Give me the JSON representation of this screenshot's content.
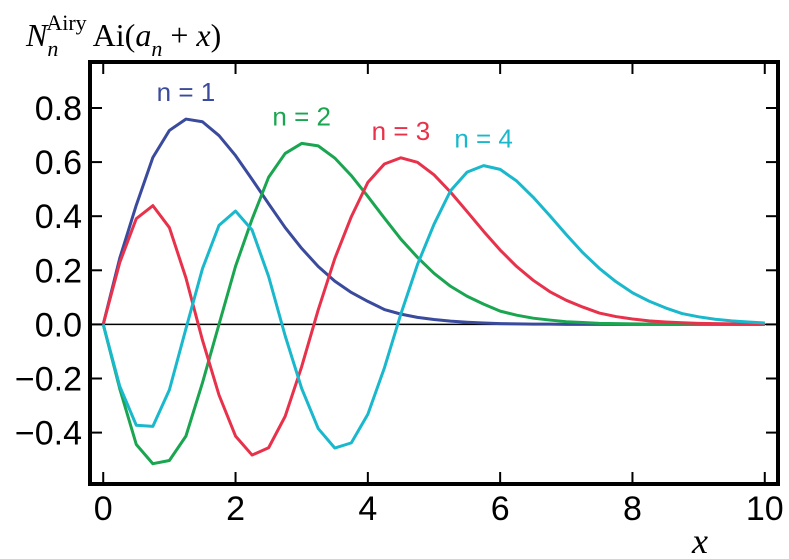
{
  "chart_data": {
    "type": "line",
    "ylabel": [
      "N",
      "n",
      "Airy",
      "Ai(",
      "a",
      "n",
      " + ",
      "x",
      ")"
    ],
    "xlabel": "x",
    "x": [
      0,
      0.25,
      0.5,
      0.75,
      1,
      1.25,
      1.5,
      1.75,
      2,
      2.25,
      2.5,
      2.75,
      3,
      3.25,
      3.5,
      3.75,
      4,
      4.25,
      4.5,
      4.75,
      5,
      5.25,
      5.5,
      5.75,
      6,
      6.25,
      6.5,
      6.75,
      7,
      7.25,
      7.5,
      7.75,
      8,
      8.25,
      8.5,
      8.75,
      9,
      9.25,
      9.5,
      9.75,
      10
    ],
    "series": [
      {
        "name": "n = 1",
        "color": "#3a4a9c",
        "values": [
          0,
          0.245,
          0.441,
          0.617,
          0.717,
          0.759,
          0.749,
          0.698,
          0.624,
          0.536,
          0.446,
          0.358,
          0.281,
          0.214,
          0.16,
          0.118,
          0.085,
          0.055,
          0.038,
          0.026,
          0.018,
          0.012,
          0.008,
          0.005,
          0.003,
          0.002,
          0.001,
          0.001,
          0,
          0,
          0,
          0,
          0,
          0,
          0,
          0,
          0,
          0,
          0,
          0,
          0
        ]
      },
      {
        "name": "n = 2",
        "color": "#1aa550",
        "values": [
          0,
          -0.238,
          -0.444,
          -0.515,
          -0.503,
          -0.413,
          -0.216,
          0,
          0.215,
          0.389,
          0.544,
          0.632,
          0.669,
          0.66,
          0.615,
          0.55,
          0.473,
          0.393,
          0.315,
          0.248,
          0.189,
          0.141,
          0.104,
          0.075,
          0.049,
          0.034,
          0.023,
          0.016,
          0.01,
          0.007,
          0.004,
          0.003,
          0.002,
          0.001,
          0.001,
          0,
          0,
          0,
          0,
          0,
          0
        ]
      },
      {
        "name": "n = 3",
        "color": "#e8314a",
        "values": [
          0,
          0.229,
          0.391,
          0.439,
          0.358,
          0.172,
          -0.058,
          -0.261,
          -0.413,
          -0.483,
          -0.456,
          -0.34,
          -0.156,
          0.054,
          0.243,
          0.398,
          0.525,
          0.593,
          0.616,
          0.599,
          0.553,
          0.489,
          0.417,
          0.344,
          0.275,
          0.214,
          0.163,
          0.121,
          0.089,
          0.064,
          0.042,
          0.029,
          0.02,
          0.013,
          0.009,
          0.006,
          0.004,
          0.003,
          0.002,
          0.001,
          0.001
        ]
      },
      {
        "name": "n = 4",
        "color": "#1ab8cc",
        "values": [
          0,
          -0.229,
          -0.373,
          -0.377,
          -0.242,
          -0.016,
          0.206,
          0.366,
          0.419,
          0.349,
          0.177,
          -0.042,
          -0.237,
          -0.385,
          -0.457,
          -0.438,
          -0.332,
          -0.161,
          0.039,
          0.221,
          0.37,
          0.494,
          0.563,
          0.587,
          0.573,
          0.53,
          0.47,
          0.402,
          0.332,
          0.265,
          0.207,
          0.158,
          0.117,
          0.086,
          0.061,
          0.04,
          0.028,
          0.019,
          0.013,
          0.009,
          0.005
        ]
      }
    ],
    "xlim": [
      -0.2,
      10.2
    ],
    "ylim": [
      -0.59,
      0.97
    ],
    "xticks": [
      0,
      2,
      4,
      6,
      8,
      10
    ],
    "yticks": [
      {
        "value": -0.4,
        "label": "−0.4"
      },
      {
        "value": -0.2,
        "label": "−0.2"
      },
      {
        "value": 0,
        "label": "0.0"
      },
      0.2,
      0.4,
      0.6,
      0.8
    ]
  }
}
